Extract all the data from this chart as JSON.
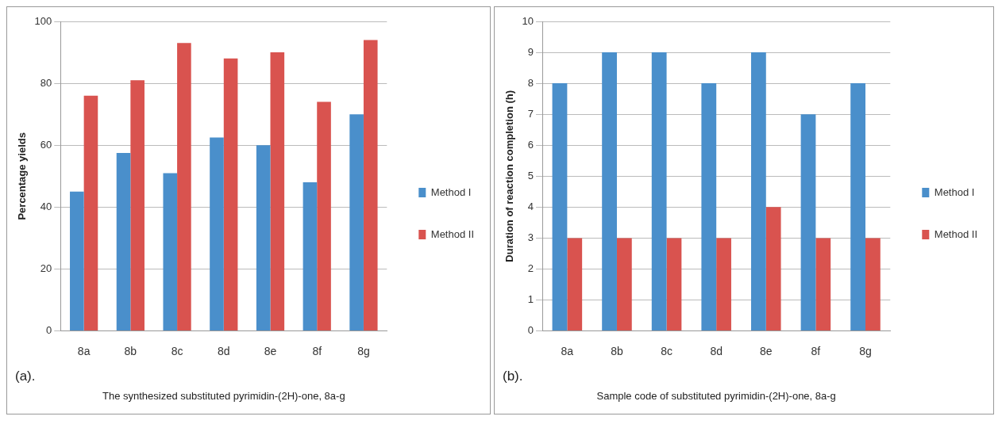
{
  "chart_data": [
    {
      "type": "bar",
      "categories": [
        "8a",
        "8b",
        "8c",
        "8d",
        "8e",
        "8f",
        "8g"
      ],
      "ylabel": "Percentage yields",
      "xlabel": "The synthesized substituted pyrimidin-(2H)-one, 8a-g",
      "ylim": [
        0,
        100
      ],
      "yticks": [
        0,
        20,
        40,
        60,
        80,
        100
      ],
      "grid": "y",
      "legend": "right",
      "annotations": [
        "(a)."
      ],
      "series": [
        {
          "name": "Method I",
          "color": "#4a8fcb",
          "values": [
            45,
            57.5,
            51,
            62.5,
            60,
            48,
            70
          ]
        },
        {
          "name": "Method II",
          "color": "#d9534f",
          "values": [
            76,
            81,
            93,
            88,
            90,
            74,
            94
          ]
        }
      ]
    },
    {
      "type": "bar",
      "categories": [
        "8a",
        "8b",
        "8c",
        "8d",
        "8e",
        "8f",
        "8g"
      ],
      "ylabel": "Duration of reaction completion (h)",
      "xlabel": "Sample code of substituted pyrimidin-(2H)-one, 8a-g",
      "ylim": [
        0,
        10
      ],
      "yticks": [
        0,
        1,
        2,
        3,
        4,
        5,
        6,
        7,
        8,
        9,
        10
      ],
      "grid": "y",
      "legend": "right",
      "annotations": [
        "(b)."
      ],
      "series": [
        {
          "name": "Method I",
          "color": "#4a8fcb",
          "values": [
            8,
            9,
            9,
            8,
            9,
            7,
            8
          ]
        },
        {
          "name": "Method II",
          "color": "#d9534f",
          "values": [
            3,
            3,
            3,
            3,
            4,
            3,
            3
          ]
        }
      ]
    }
  ]
}
